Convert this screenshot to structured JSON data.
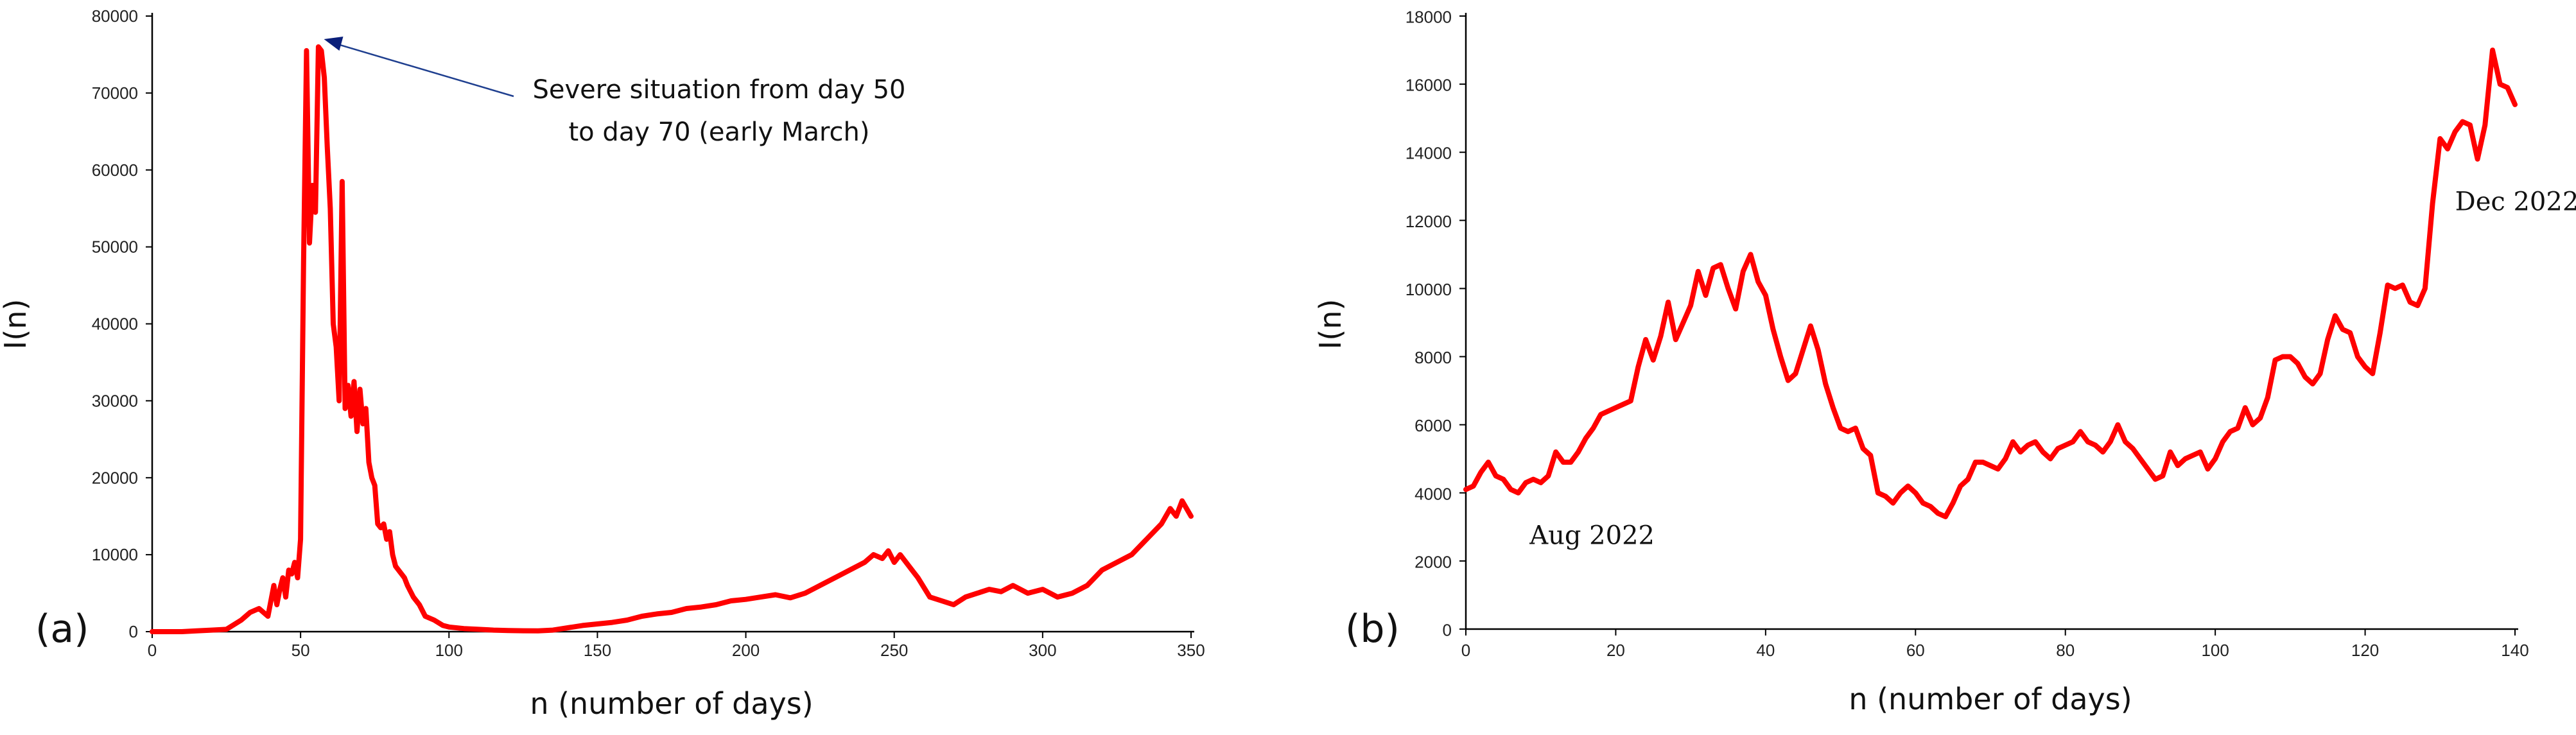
{
  "chart_data": [
    {
      "type": "line",
      "panel_label": "(a)",
      "xlabel": "n (number of days)",
      "ylabel": "I(n)",
      "xlim": [
        0,
        350
      ],
      "ylim": [
        0,
        80000
      ],
      "xticks": [
        0,
        50,
        100,
        150,
        200,
        250,
        300,
        350
      ],
      "yticks": [
        0,
        10000,
        20000,
        30000,
        40000,
        50000,
        60000,
        70000,
        80000
      ],
      "grid": false,
      "color": "#ff0000",
      "annotation": {
        "line1": "Severe situation from day 50",
        "line2": "to day 70 (early March)",
        "arrow_to": [
          57,
          77000
        ]
      },
      "x": [
        0,
        5,
        10,
        15,
        20,
        25,
        30,
        33,
        36,
        39,
        41,
        42,
        43,
        44,
        45,
        46,
        47,
        48,
        49,
        50,
        51,
        52,
        53,
        54,
        55,
        56,
        57,
        58,
        59,
        60,
        61,
        62,
        63,
        64,
        65,
        66,
        67,
        68,
        69,
        70,
        71,
        72,
        73,
        74,
        75,
        76,
        77,
        78,
        79,
        80,
        81,
        82,
        83,
        84,
        85,
        86,
        88,
        90,
        92,
        95,
        98,
        100,
        105,
        110,
        115,
        120,
        125,
        130,
        135,
        140,
        145,
        150,
        155,
        160,
        165,
        170,
        175,
        180,
        185,
        190,
        195,
        200,
        205,
        210,
        215,
        220,
        225,
        230,
        235,
        240,
        243,
        246,
        248,
        250,
        252,
        255,
        258,
        262,
        266,
        270,
        274,
        278,
        282,
        286,
        290,
        295,
        300,
        305,
        310,
        315,
        320,
        325,
        330,
        335,
        340,
        343,
        345,
        347,
        350
      ],
      "values": [
        0,
        0,
        0,
        100,
        200,
        300,
        1500,
        2500,
        3000,
        2000,
        6000,
        3500,
        5500,
        7000,
        4500,
        8000,
        7500,
        9000,
        7000,
        12000,
        48000,
        75500,
        50500,
        58000,
        54500,
        76000,
        75500,
        72000,
        63000,
        55000,
        40000,
        37000,
        30000,
        58500,
        29000,
        32000,
        28000,
        32500,
        26000,
        31500,
        27000,
        29000,
        22000,
        20000,
        19000,
        14000,
        13500,
        14000,
        12000,
        13000,
        10000,
        8500,
        8000,
        7500,
        7000,
        6000,
        4500,
        3500,
        2000,
        1500,
        800,
        600,
        400,
        300,
        200,
        150,
        120,
        100,
        200,
        500,
        800,
        1000,
        1200,
        1500,
        2000,
        2300,
        2500,
        3000,
        3200,
        3500,
        4000,
        4200,
        4500,
        4800,
        4400,
        5000,
        6000,
        7000,
        8000,
        9000,
        10000,
        9500,
        10500,
        9000,
        10000,
        8500,
        7000,
        4500,
        4000,
        3500,
        4500,
        5000,
        5500,
        5200,
        6000,
        5000,
        5500,
        4500,
        5000,
        6000,
        8000,
        9000,
        10000,
        12000,
        14000,
        16000,
        15000,
        17000,
        15000
      ]
    },
    {
      "type": "line",
      "panel_label": "(b)",
      "xlabel": "n (number of days)",
      "ylabel": "I(n)",
      "xlim": [
        0,
        140
      ],
      "ylim": [
        0,
        18000
      ],
      "xticks": [
        0,
        20,
        40,
        60,
        80,
        100,
        120,
        140
      ],
      "yticks": [
        0,
        2000,
        4000,
        6000,
        8000,
        10000,
        12000,
        14000,
        16000,
        18000
      ],
      "grid": false,
      "color": "#ff0000",
      "annotations": [
        {
          "text": "Aug 2022",
          "at": [
            8.5,
            2500
          ]
        },
        {
          "text": "Dec 2022",
          "at": [
            132,
            12300
          ]
        }
      ],
      "x": [
        0,
        1,
        2,
        3,
        4,
        5,
        6,
        7,
        8,
        9,
        10,
        11,
        12,
        13,
        14,
        15,
        16,
        17,
        18,
        19,
        20,
        21,
        22,
        23,
        24,
        25,
        26,
        27,
        28,
        29,
        30,
        31,
        32,
        33,
        34,
        35,
        36,
        37,
        38,
        39,
        40,
        41,
        42,
        43,
        44,
        45,
        46,
        47,
        48,
        49,
        50,
        51,
        52,
        53,
        54,
        55,
        56,
        57,
        58,
        59,
        60,
        61,
        62,
        63,
        64,
        65,
        66,
        67,
        68,
        69,
        70,
        71,
        72,
        73,
        74,
        75,
        76,
        77,
        78,
        79,
        80,
        81,
        82,
        83,
        84,
        85,
        86,
        87,
        88,
        89,
        90,
        91,
        92,
        93,
        94,
        95,
        96,
        97,
        98,
        99,
        100,
        101,
        102,
        103,
        104,
        105,
        106,
        107,
        108,
        109,
        110,
        111,
        112,
        113,
        114,
        115,
        116,
        117,
        118,
        119,
        120,
        121,
        122,
        123,
        124,
        125,
        126,
        127,
        128,
        129,
        130,
        131,
        132,
        133,
        134,
        135,
        136,
        137,
        138,
        139,
        140
      ],
      "values": [
        4100,
        4200,
        4600,
        4900,
        4500,
        4400,
        4100,
        4000,
        4300,
        4400,
        4300,
        4500,
        5200,
        4900,
        4900,
        5200,
        5600,
        5900,
        6300,
        6400,
        6500,
        6600,
        6700,
        7700,
        8500,
        7900,
        8600,
        9600,
        8500,
        9000,
        9500,
        10500,
        9800,
        10600,
        10700,
        10000,
        9400,
        10500,
        11000,
        10200,
        9800,
        8800,
        8000,
        7300,
        7500,
        8200,
        8900,
        8200,
        7200,
        6500,
        5900,
        5800,
        5900,
        5300,
        5100,
        4000,
        3900,
        3700,
        4000,
        4200,
        4000,
        3700,
        3600,
        3400,
        3300,
        3700,
        4200,
        4400,
        4900,
        4900,
        4800,
        4700,
        5000,
        5500,
        5200,
        5400,
        5500,
        5200,
        5000,
        5300,
        5400,
        5500,
        5800,
        5500,
        5400,
        5200,
        5500,
        6000,
        5500,
        5300,
        5000,
        4700,
        4400,
        4500,
        5200,
        4800,
        5000,
        5100,
        5200,
        4700,
        5000,
        5500,
        5800,
        5900,
        6500,
        6000,
        6200,
        6800,
        7900,
        8000,
        8000,
        7800,
        7400,
        7200,
        7500,
        8500,
        9200,
        8800,
        8700,
        8000,
        7700,
        7500,
        8700,
        10100,
        10000,
        10100,
        9600,
        9500,
        10000,
        12500,
        14400,
        14100,
        14600,
        14900,
        14800,
        13800,
        14800,
        17000,
        16000,
        15900,
        15400
      ]
    }
  ]
}
